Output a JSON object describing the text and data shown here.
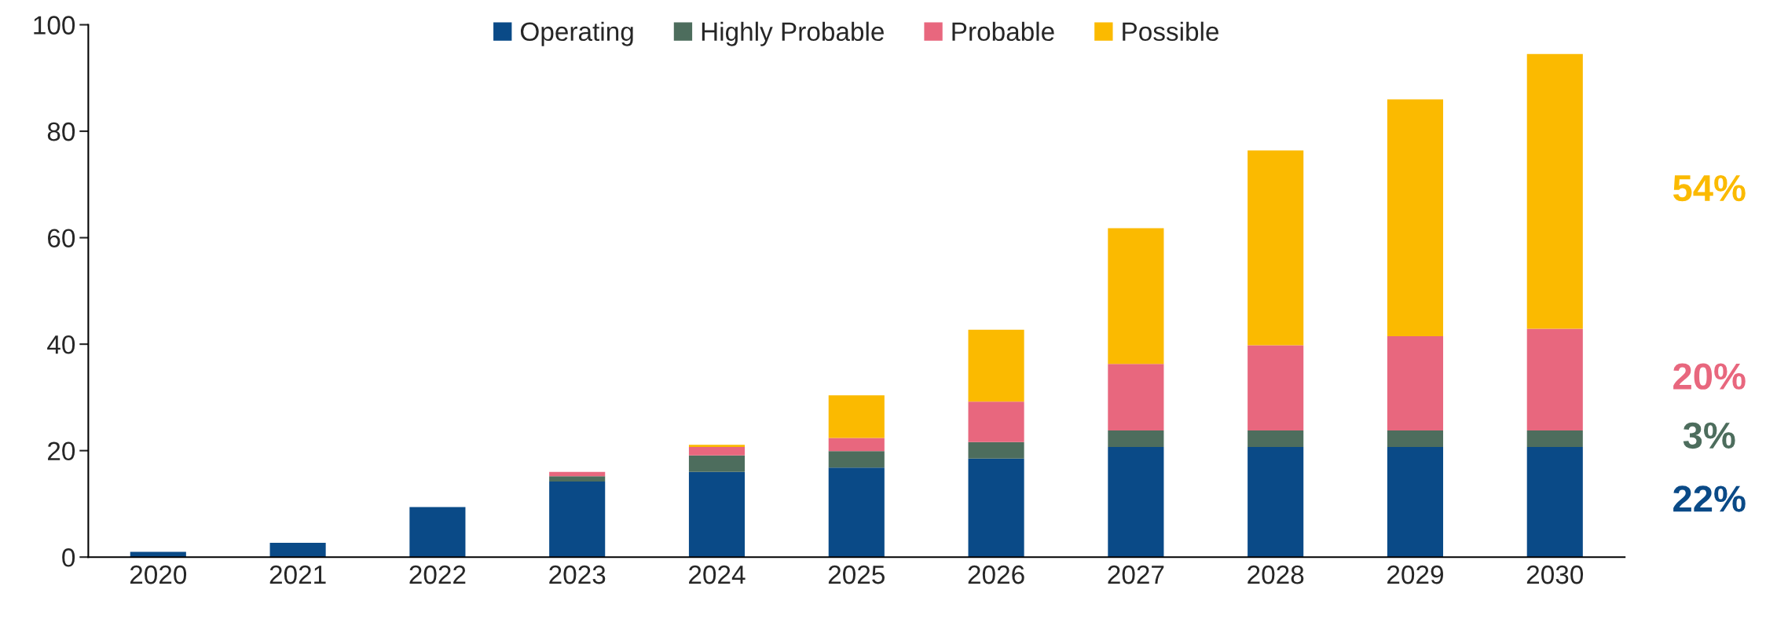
{
  "chart_data": {
    "type": "bar",
    "stacked": true,
    "categories": [
      "2020",
      "2021",
      "2022",
      "2023",
      "2024",
      "2025",
      "2026",
      "2027",
      "2028",
      "2029",
      "2030"
    ],
    "series": [
      {
        "name": "Operating",
        "color": "#0a4a87",
        "values": [
          1.0,
          2.7,
          9.4,
          14.2,
          16.0,
          16.8,
          18.5,
          20.7,
          20.7,
          20.7,
          20.7
        ]
      },
      {
        "name": "Highly Probable",
        "color": "#4d6d5d",
        "values": [
          0,
          0,
          0,
          1.0,
          3.1,
          3.1,
          3.1,
          3.1,
          3.1,
          3.1,
          3.1
        ]
      },
      {
        "name": "Probable",
        "color": "#e8677e",
        "values": [
          0,
          0,
          0,
          0.8,
          1.6,
          2.5,
          7.6,
          12.5,
          16.0,
          17.7,
          19.1
        ]
      },
      {
        "name": "Possible",
        "color": "#fbba00",
        "values": [
          0,
          0,
          0,
          0,
          0.4,
          8.0,
          13.5,
          25.5,
          36.6,
          44.5,
          51.6
        ]
      }
    ],
    "annotations": [
      "22%",
      "3%",
      "20%",
      "54%"
    ],
    "ylim": [
      0,
      100
    ],
    "yticks": [
      0,
      20,
      40,
      60,
      80,
      100
    ],
    "grid": false,
    "legend": "top"
  }
}
